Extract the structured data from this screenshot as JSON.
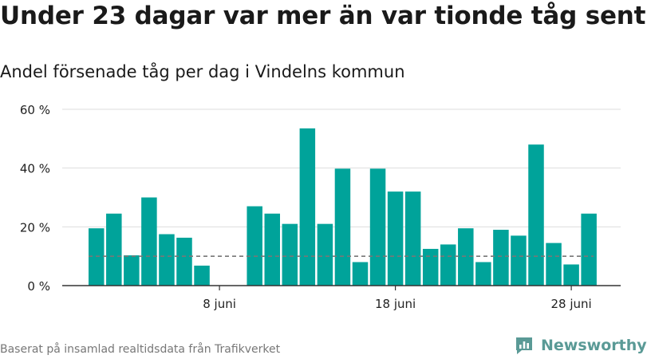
{
  "title": "Under 23 dagar var mer än var tionde tåg sent",
  "subtitle": "Andel försenade tåg per dag i Vindelns kommun",
  "footer": "Baserat på insamlad realtidsdata från Trafikverket",
  "brand": {
    "name": "Newsworthy",
    "color": "#5a9a96",
    "icon": "bar-chart-logo-icon"
  },
  "colors": {
    "bar": "#00a39a",
    "grid": "#dddddd",
    "axis": "#333333",
    "reference": "#777777"
  },
  "chart_data": {
    "type": "bar",
    "title": "Under 23 dagar var mer än var tionde tåg sent",
    "subtitle": "Andel försenade tåg per dag i Vindelns kommun",
    "x": [
      1,
      2,
      3,
      4,
      5,
      6,
      7,
      8,
      9,
      10,
      11,
      12,
      13,
      14,
      15,
      16,
      17,
      18,
      19,
      20,
      21,
      22,
      23,
      24,
      25,
      26,
      27,
      28,
      29,
      30
    ],
    "values": [
      19.5,
      24.5,
      10.3,
      30,
      17.5,
      16.3,
      6.8,
      null,
      null,
      27,
      24.5,
      21,
      53.5,
      21,
      39.8,
      8,
      39.8,
      32,
      32,
      12.5,
      14,
      19.5,
      8,
      19,
      17,
      48,
      14.5,
      7.2,
      24.5,
      null
    ],
    "unit": "%",
    "reference_line": 10,
    "ylim": [
      0,
      60
    ],
    "yticks": [
      0,
      20,
      40,
      60
    ],
    "ytick_labels": [
      "0 %",
      "20 %",
      "40 %",
      "60 %"
    ],
    "xticks": [
      {
        "x": 8,
        "label": "8 juni"
      },
      {
        "x": 18,
        "label": "18 juni"
      },
      {
        "x": 28,
        "label": "28 juni"
      }
    ],
    "xlim": [
      0,
      31
    ],
    "grid": true,
    "legend": "none"
  }
}
